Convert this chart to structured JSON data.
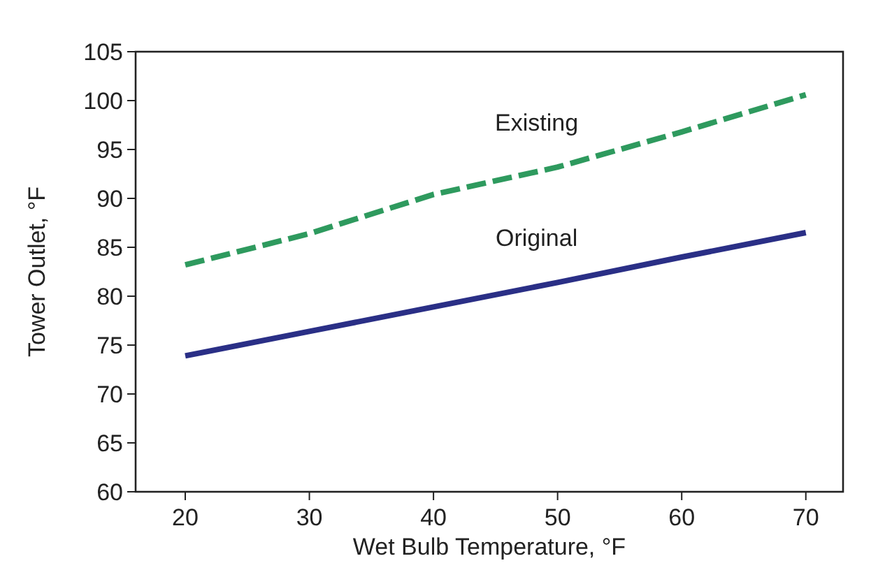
{
  "chart_data": {
    "type": "line",
    "xlabel": "Wet Bulb Temperature, °F",
    "ylabel": "Tower Outlet, °F",
    "x": [
      20,
      30,
      40,
      50,
      60,
      70
    ],
    "series": [
      {
        "name": "Existing",
        "color": "#2e9a5e",
        "line_style": "dashed",
        "values": [
          83.2,
          86.4,
          90.4,
          93.2,
          96.8,
          100.6
        ]
      },
      {
        "name": "Original",
        "color": "#2a2f86",
        "line_style": "solid",
        "values": [
          73.9,
          76.4,
          78.9,
          81.4,
          84,
          86.5
        ]
      }
    ],
    "xlim": [
      16,
      73
    ],
    "xticks": [
      20,
      30,
      40,
      50,
      60,
      70
    ],
    "ylim": [
      60,
      105
    ],
    "yticks": [
      60,
      65,
      70,
      75,
      80,
      85,
      90,
      95,
      100,
      105
    ],
    "grid": false,
    "legend": false,
    "marker": "none"
  }
}
